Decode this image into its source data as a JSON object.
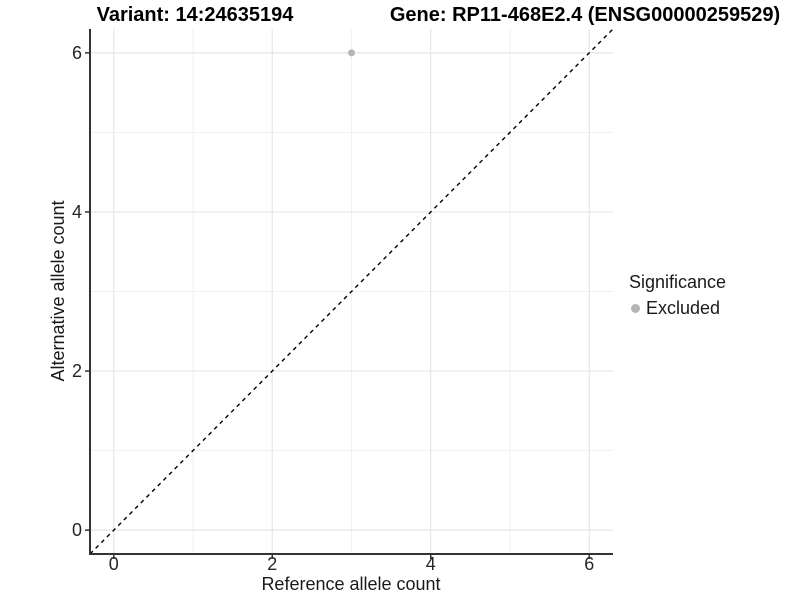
{
  "header": {
    "variant_title": "Variant: 14:24635194",
    "gene_title": "Gene: RP11-468E2.4 (ENSG00000259529)"
  },
  "chart_data": {
    "type": "scatter",
    "xlabel": "Reference allele count",
    "ylabel": "Alternative allele count",
    "xlim": [
      -0.3,
      6.3
    ],
    "ylim": [
      -0.3,
      6.3
    ],
    "xticks": [
      0,
      2,
      4,
      6
    ],
    "yticks": [
      0,
      2,
      4,
      6
    ],
    "minor_ticks": [
      1,
      3,
      5
    ],
    "grid": "major+minor",
    "points": [
      {
        "x": 3,
        "y": 6,
        "series": "Excluded"
      }
    ],
    "reference_line": {
      "type": "abline",
      "slope": 1,
      "intercept": 0,
      "style": "dashed",
      "color": "#000000"
    },
    "legend": {
      "title": "Significance",
      "position": "right",
      "items": [
        {
          "label": "Excluded",
          "color": "#b5b5b5"
        }
      ]
    },
    "colors": {
      "point": "#b5b5b5",
      "grid_major": "#e6e6e6",
      "grid_minor": "#f1f1f1",
      "axis_line": "#333333",
      "tick": "#333333"
    }
  }
}
